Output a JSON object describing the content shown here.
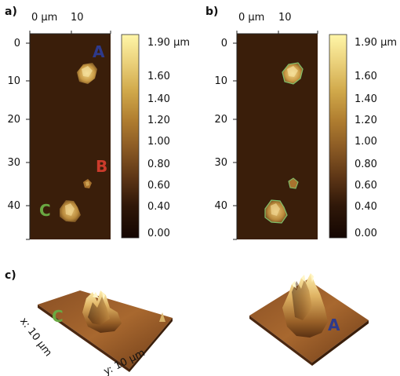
{
  "panels": {
    "a": {
      "label": "a)"
    },
    "b": {
      "label": "b)"
    },
    "c": {
      "label": "c)"
    }
  },
  "top_axis": {
    "tick0": "0 µm",
    "tick1": "10"
  },
  "left_axis_ticks": [
    "0",
    "10",
    "20",
    "30",
    "40"
  ],
  "colorbar": {
    "ticks": [
      "1.90 µm",
      "1.60",
      "1.40",
      "1.20",
      "1.00",
      "0.80",
      "0.60",
      "0.40",
      "0.00"
    ],
    "gradient_colors": [
      "#fff6a8",
      "#e6c466",
      "#c89a3c",
      "#a8732c",
      "#7c4e22",
      "#4f2f14",
      "#2a1608",
      "#150702"
    ]
  },
  "regions": {
    "A": {
      "letter": "A",
      "color": "#2e3a8c"
    },
    "B": {
      "letter": "B",
      "color": "#cc3b2b"
    },
    "C": {
      "letter": "C",
      "color": "#6aa842"
    }
  },
  "panel_c": {
    "x_label": "x: 10 µm",
    "y_label": "y: 10 µm"
  },
  "colors": {
    "afm_dark": "#3a1e0a",
    "afm_mid": "#5a3112"
  }
}
